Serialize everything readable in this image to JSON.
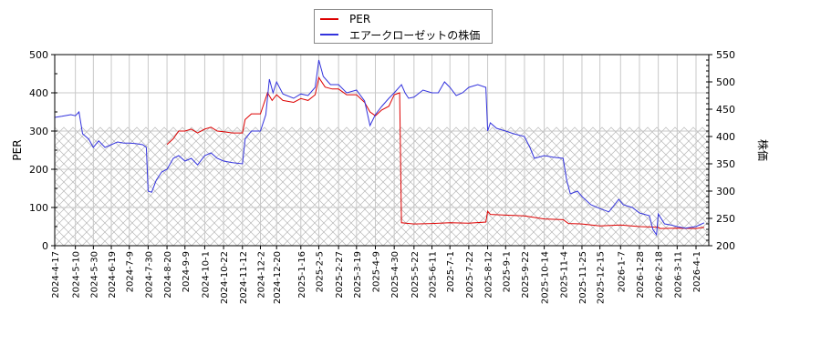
{
  "chart_data": {
    "type": "line",
    "title": "",
    "xlabel": "",
    "ylabel": "PER",
    "y2label": "株価",
    "ylim": [
      0,
      500
    ],
    "y2lim": [
      200,
      550
    ],
    "yticks": [
      0,
      100,
      200,
      300,
      400,
      500
    ],
    "y2ticks": [
      200,
      250,
      300,
      350,
      400,
      450,
      500,
      550
    ],
    "grid": true,
    "legend_position": "top-center",
    "hatched_region": {
      "y_from": 0,
      "y_to": 310,
      "axis": "left"
    },
    "x_tick_labels": [
      "2024-4-17",
      "2024-5-10",
      "2024-5-30",
      "2024-6-19",
      "2024-7-9",
      "2024-7-30",
      "2024-8-20",
      "2024-9-9",
      "2024-10-1",
      "2024-10-22",
      "2024-11-12",
      "2024-12-2",
      "2024-12-20",
      "2025-1-16",
      "2025-2-5",
      "2025-2-27",
      "2025-3-19",
      "2025-4-9",
      "2025-4-30",
      "2025-5-22",
      "2025-6-11",
      "2025-7-1",
      "2025-7-22",
      "2025-8-12",
      "2025-9-1",
      "2025-9-22",
      "2025-10-14",
      "2025-11-4",
      "2025-11-25",
      "2025-12-15",
      "2026-1-7",
      "2026-1-28",
      "2026-2-18",
      "2026-3-11",
      "2026-4-1"
    ],
    "series": [
      {
        "name": "PER",
        "color": "#dd0000",
        "axis": "left",
        "points": [
          [
            "2024-8-20",
            265
          ],
          [
            "2024-8-27",
            280
          ],
          [
            "2024-9-2",
            300
          ],
          [
            "2024-9-9",
            300
          ],
          [
            "2024-9-16",
            305
          ],
          [
            "2024-9-23",
            295
          ],
          [
            "2024-10-1",
            305
          ],
          [
            "2024-10-8",
            310
          ],
          [
            "2024-10-15",
            300
          ],
          [
            "2024-10-22",
            298
          ],
          [
            "2024-11-1",
            295
          ],
          [
            "2024-11-12",
            295
          ],
          [
            "2024-11-15",
            330
          ],
          [
            "2024-11-22",
            345
          ],
          [
            "2024-12-2",
            345
          ],
          [
            "2024-12-10",
            400
          ],
          [
            "2024-12-15",
            380
          ],
          [
            "2024-12-20",
            395
          ],
          [
            "2024-12-27",
            380
          ],
          [
            "2025-1-8",
            375
          ],
          [
            "2025-1-16",
            385
          ],
          [
            "2025-1-24",
            380
          ],
          [
            "2025-2-1",
            395
          ],
          [
            "2025-2-5",
            440
          ],
          [
            "2025-2-12",
            415
          ],
          [
            "2025-2-20",
            410
          ],
          [
            "2025-2-27",
            410
          ],
          [
            "2025-3-8",
            395
          ],
          [
            "2025-3-19",
            395
          ],
          [
            "2025-3-28",
            375
          ],
          [
            "2025-4-3",
            350
          ],
          [
            "2025-4-9",
            340
          ],
          [
            "2025-4-16",
            355
          ],
          [
            "2025-4-24",
            365
          ],
          [
            "2025-4-30",
            395
          ],
          [
            "2025-5-6",
            400
          ],
          [
            "2025-5-8",
            60
          ],
          [
            "2025-5-22",
            57
          ],
          [
            "2025-6-11",
            58
          ],
          [
            "2025-7-1",
            60
          ],
          [
            "2025-7-22",
            59
          ],
          [
            "2025-8-10",
            62
          ],
          [
            "2025-8-12",
            90
          ],
          [
            "2025-8-15",
            82
          ],
          [
            "2025-9-1",
            80
          ],
          [
            "2025-9-22",
            78
          ],
          [
            "2025-10-14",
            70
          ],
          [
            "2025-11-4",
            68
          ],
          [
            "2025-11-10",
            58
          ],
          [
            "2025-11-25",
            57
          ],
          [
            "2025-12-15",
            52
          ],
          [
            "2026-1-7",
            54
          ],
          [
            "2026-1-28",
            50
          ],
          [
            "2026-2-18",
            48
          ],
          [
            "2026-2-20",
            45
          ],
          [
            "2026-3-11",
            46
          ],
          [
            "2026-4-1",
            45
          ],
          [
            "2026-4-10",
            48
          ]
        ]
      },
      {
        "name": "エアークローゼットの株価",
        "color": "#3333dd",
        "axis": "right",
        "points": [
          [
            "2024-4-17",
            435
          ],
          [
            "2024-4-25",
            437
          ],
          [
            "2024-5-5",
            440
          ],
          [
            "2024-5-10",
            438
          ],
          [
            "2024-5-14",
            445
          ],
          [
            "2024-5-18",
            405
          ],
          [
            "2024-5-25",
            395
          ],
          [
            "2024-5-30",
            380
          ],
          [
            "2024-6-5",
            392
          ],
          [
            "2024-6-12",
            380
          ],
          [
            "2024-6-19",
            385
          ],
          [
            "2024-6-26",
            390
          ],
          [
            "2024-7-3",
            388
          ],
          [
            "2024-7-9",
            388
          ],
          [
            "2024-7-16",
            387
          ],
          [
            "2024-7-24",
            385
          ],
          [
            "2024-7-28",
            380
          ],
          [
            "2024-7-30",
            300
          ],
          [
            "2024-8-3",
            298
          ],
          [
            "2024-8-8",
            320
          ],
          [
            "2024-8-14",
            335
          ],
          [
            "2024-8-20",
            340
          ],
          [
            "2024-8-27",
            360
          ],
          [
            "2024-9-2",
            365
          ],
          [
            "2024-9-9",
            355
          ],
          [
            "2024-9-16",
            360
          ],
          [
            "2024-9-23",
            348
          ],
          [
            "2024-10-1",
            365
          ],
          [
            "2024-10-8",
            370
          ],
          [
            "2024-10-15",
            360
          ],
          [
            "2024-10-22",
            355
          ],
          [
            "2024-11-1",
            352
          ],
          [
            "2024-11-12",
            350
          ],
          [
            "2024-11-15",
            395
          ],
          [
            "2024-11-22",
            410
          ],
          [
            "2024-12-2",
            410
          ],
          [
            "2024-12-8",
            440
          ],
          [
            "2024-12-12",
            505
          ],
          [
            "2024-12-16",
            480
          ],
          [
            "2024-12-20",
            500
          ],
          [
            "2024-12-27",
            478
          ],
          [
            "2025-1-8",
            470
          ],
          [
            "2025-1-16",
            478
          ],
          [
            "2025-1-24",
            475
          ],
          [
            "2025-2-1",
            490
          ],
          [
            "2025-2-5",
            540
          ],
          [
            "2025-2-10",
            510
          ],
          [
            "2025-2-18",
            495
          ],
          [
            "2025-2-27",
            495
          ],
          [
            "2025-3-8",
            480
          ],
          [
            "2025-3-19",
            485
          ],
          [
            "2025-3-28",
            465
          ],
          [
            "2025-4-3",
            420
          ],
          [
            "2025-4-9",
            440
          ],
          [
            "2025-4-16",
            455
          ],
          [
            "2025-4-24",
            470
          ],
          [
            "2025-4-30",
            480
          ],
          [
            "2025-5-8",
            495
          ],
          [
            "2025-5-12",
            480
          ],
          [
            "2025-5-16",
            470
          ],
          [
            "2025-5-22",
            472
          ],
          [
            "2025-6-1",
            485
          ],
          [
            "2025-6-11",
            480
          ],
          [
            "2025-6-18",
            480
          ],
          [
            "2025-6-25",
            500
          ],
          [
            "2025-7-1",
            490
          ],
          [
            "2025-7-8",
            475
          ],
          [
            "2025-7-15",
            480
          ],
          [
            "2025-7-22",
            490
          ],
          [
            "2025-8-1",
            495
          ],
          [
            "2025-8-10",
            490
          ],
          [
            "2025-8-12",
            410
          ],
          [
            "2025-8-15",
            425
          ],
          [
            "2025-8-22",
            415
          ],
          [
            "2025-9-1",
            410
          ],
          [
            "2025-9-10",
            405
          ],
          [
            "2025-9-22",
            400
          ],
          [
            "2025-9-28",
            380
          ],
          [
            "2025-10-3",
            360
          ],
          [
            "2025-10-14",
            365
          ],
          [
            "2025-10-24",
            362
          ],
          [
            "2025-11-4",
            360
          ],
          [
            "2025-11-8",
            320
          ],
          [
            "2025-11-12",
            295
          ],
          [
            "2025-11-20",
            300
          ],
          [
            "2025-11-25",
            290
          ],
          [
            "2025-12-5",
            275
          ],
          [
            "2025-12-15",
            268
          ],
          [
            "2025-12-25",
            262
          ],
          [
            "2026-1-5",
            285
          ],
          [
            "2026-1-10",
            275
          ],
          [
            "2026-1-20",
            270
          ],
          [
            "2026-1-28",
            260
          ],
          [
            "2026-2-8",
            255
          ],
          [
            "2026-2-12",
            230
          ],
          [
            "2026-2-16",
            220
          ],
          [
            "2026-2-18",
            258
          ],
          [
            "2026-2-25",
            240
          ],
          [
            "2026-3-4",
            238
          ],
          [
            "2026-3-11",
            235
          ],
          [
            "2026-3-20",
            232
          ],
          [
            "2026-4-1",
            235
          ],
          [
            "2026-4-10",
            242
          ]
        ]
      }
    ]
  },
  "legend": {
    "items": [
      {
        "label": "PER",
        "color": "#dd0000"
      },
      {
        "label": "エアークローゼットの株価",
        "color": "#3333dd"
      }
    ]
  }
}
